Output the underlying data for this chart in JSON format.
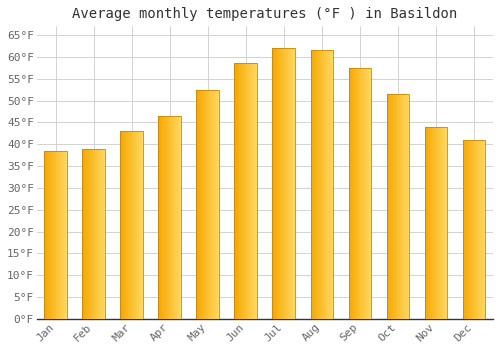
{
  "title": "Average monthly temperatures (°F ) in Basildon",
  "months": [
    "Jan",
    "Feb",
    "Mar",
    "Apr",
    "May",
    "Jun",
    "Jul",
    "Aug",
    "Sep",
    "Oct",
    "Nov",
    "Dec"
  ],
  "values": [
    38.5,
    39.0,
    43.0,
    46.5,
    52.5,
    58.5,
    62.0,
    61.5,
    57.5,
    51.5,
    44.0,
    41.0
  ],
  "bar_color_left": "#F5A800",
  "bar_color_right": "#FFD966",
  "bar_edge_color": "#C8860A",
  "ylim": [
    0,
    67
  ],
  "yticks": [
    0,
    5,
    10,
    15,
    20,
    25,
    30,
    35,
    40,
    45,
    50,
    55,
    60,
    65
  ],
  "grid_color": "#CCCCCC",
  "background_color": "#FFFFFF",
  "plot_bg_color": "#FFFFFF",
  "title_fontsize": 10,
  "tick_fontsize": 8,
  "font_family": "monospace",
  "bar_width": 0.6
}
